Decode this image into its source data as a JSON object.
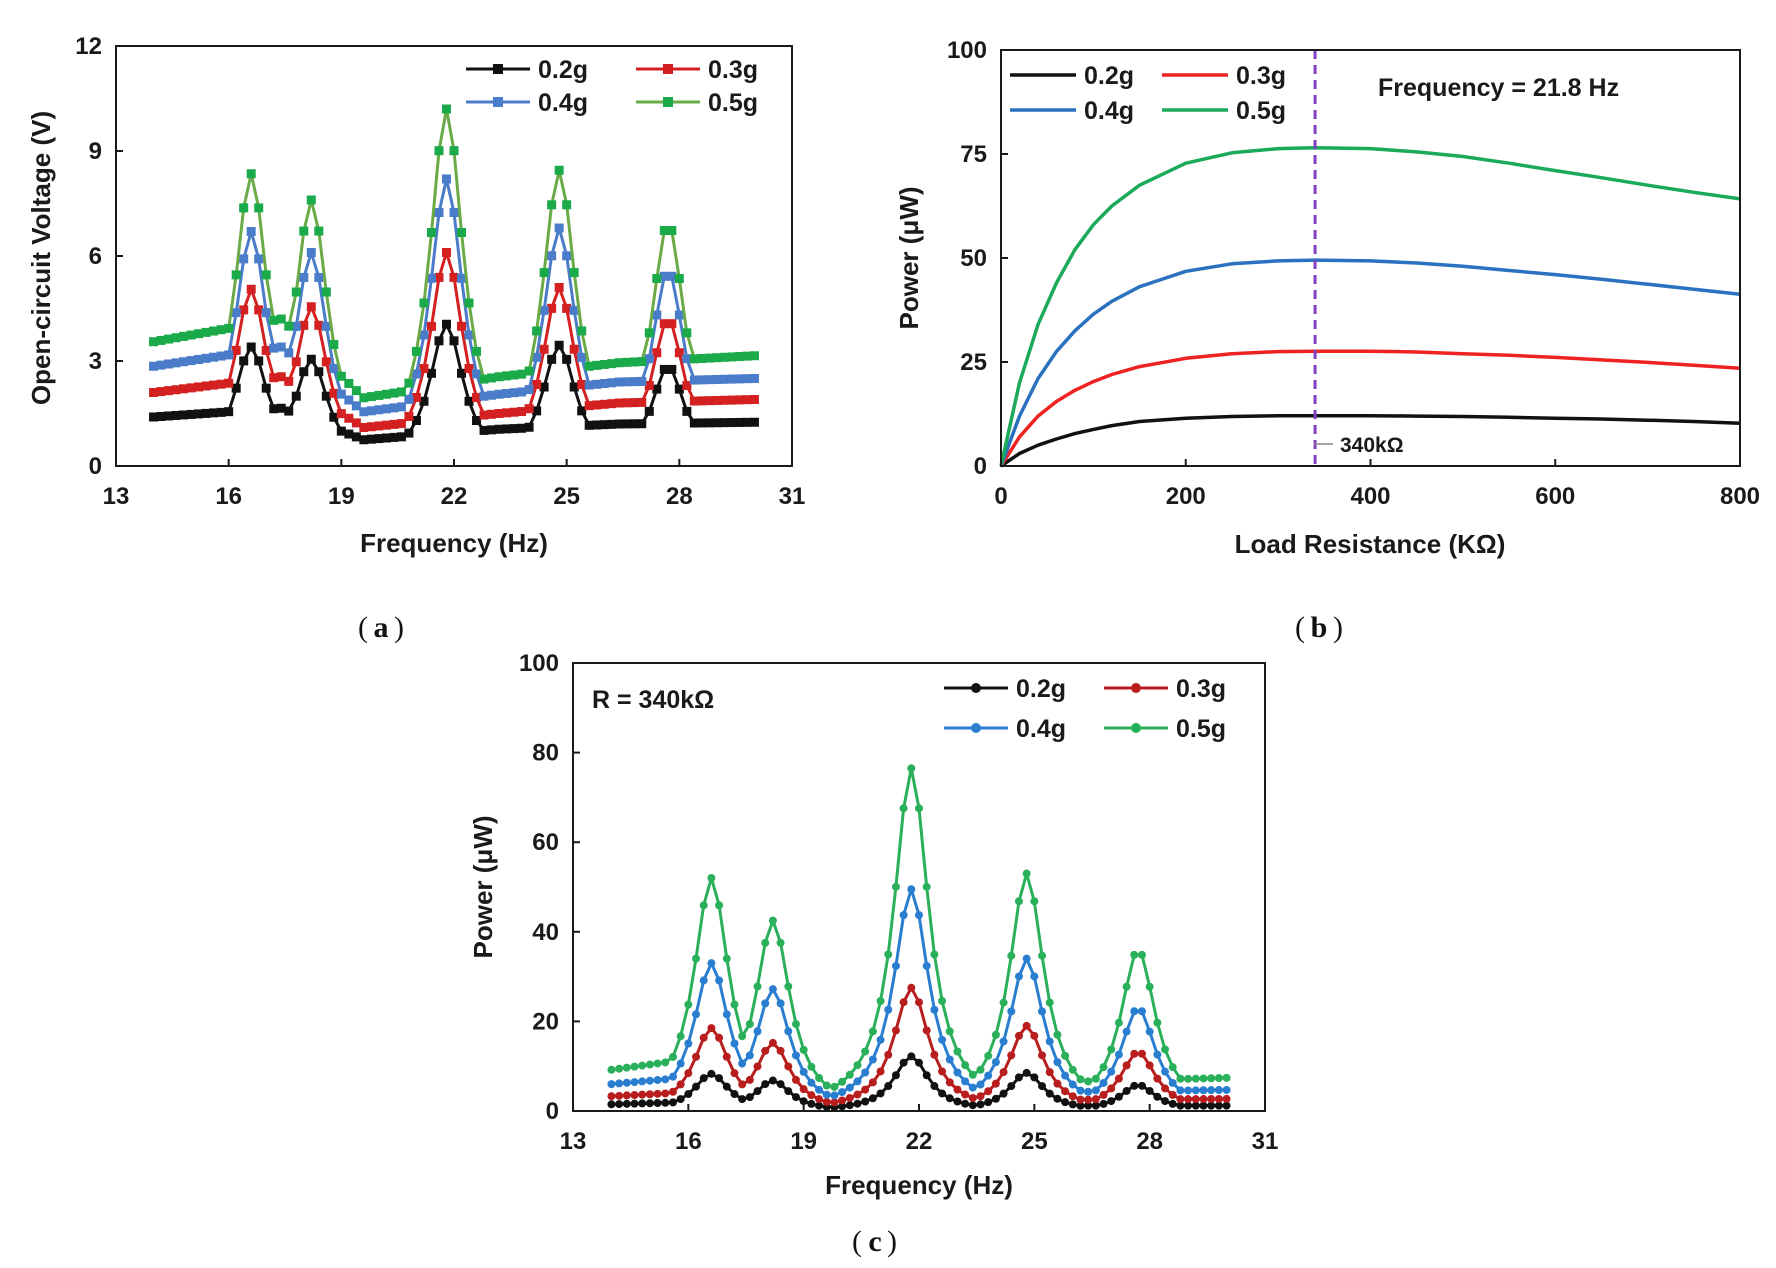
{
  "colors": {
    "a": {
      "0.2g": "#111111",
      "0.3g": "#d42020",
      "0.4g": "#4a7cc9",
      "0.5g": "#6aab48"
    },
    "b": {
      "0.2g": "#111111",
      "0.3g": "#ee2222",
      "0.4g": "#2a72c0",
      "0.5g": "#1aaa5a"
    },
    "c": {
      "0.2g": "#111111",
      "0.3g": "#b81e1e",
      "0.4g": "#2a7ed0",
      "0.5g": "#2ab05a"
    },
    "marker_a_0.5g": "#1aaa4a",
    "dashed_line": "#8040c0"
  },
  "chart_data": [
    {
      "id": "a",
      "type": "line",
      "caption": "a",
      "xlabel": "Frequency (Hz)",
      "ylabel": "Open-circuit Voltage (V)",
      "xlim": [
        13,
        31
      ],
      "ylim": [
        0,
        12
      ],
      "xticks": [
        "13",
        "16",
        "19",
        "22",
        "25",
        "28",
        "31"
      ],
      "yticks": [
        "0",
        "3",
        "6",
        "9",
        "12"
      ],
      "x_start": 14,
      "x_end": 30,
      "x_step": 0.2,
      "marker": "square",
      "legend": [
        "0.2g",
        "0.3g",
        "0.4g",
        "0.5g"
      ],
      "series": [
        {
          "name": "0.2g",
          "peaks": [
            [
              16.6,
              3.4
            ],
            [
              18.2,
              3.05
            ],
            [
              21.8,
              4.05
            ],
            [
              24.8,
              3.45
            ],
            [
              27.7,
              2.85
            ]
          ],
          "minima": [
            [
              14,
              1.4
            ],
            [
              17.4,
              1.65
            ],
            [
              19.6,
              0.75
            ],
            [
              23.2,
              1.05
            ],
            [
              26.4,
              1.2
            ],
            [
              30,
              1.25
            ]
          ]
        },
        {
          "name": "0.3g",
          "peaks": [
            [
              16.6,
              5.05
            ],
            [
              18.2,
              4.55
            ],
            [
              21.8,
              6.1
            ],
            [
              24.8,
              5.1
            ],
            [
              27.7,
              4.2
            ]
          ],
          "minima": [
            [
              14,
              2.1
            ],
            [
              17.4,
              2.55
            ],
            [
              19.6,
              1.1
            ],
            [
              23.2,
              1.5
            ],
            [
              26.4,
              1.8
            ],
            [
              30,
              1.9
            ]
          ]
        },
        {
          "name": "0.4g",
          "peaks": [
            [
              16.6,
              6.7
            ],
            [
              18.2,
              6.1
            ],
            [
              21.8,
              8.2
            ],
            [
              24.8,
              6.8
            ],
            [
              27.7,
              5.6
            ]
          ],
          "minima": [
            [
              14,
              2.85
            ],
            [
              17.4,
              3.4
            ],
            [
              19.6,
              1.55
            ],
            [
              23.2,
              2.05
            ],
            [
              26.4,
              2.4
            ],
            [
              30,
              2.5
            ]
          ]
        },
        {
          "name": "0.5g",
          "peaks": [
            [
              16.6,
              8.35
            ],
            [
              18.2,
              7.6
            ],
            [
              21.8,
              10.2
            ],
            [
              24.8,
              8.45
            ],
            [
              27.7,
              6.95
            ]
          ],
          "minima": [
            [
              14,
              3.55
            ],
            [
              17.4,
              4.2
            ],
            [
              19.6,
              1.95
            ],
            [
              23.2,
              2.55
            ],
            [
              26.4,
              2.95
            ],
            [
              30,
              3.15
            ]
          ]
        }
      ]
    },
    {
      "id": "b",
      "type": "line",
      "caption": "b",
      "xlabel": "Load Resistance  (KΩ)",
      "ylabel": "Power  (μW)",
      "xlim": [
        0,
        800
      ],
      "ylim": [
        0,
        100
      ],
      "xticks": [
        "0",
        "200",
        "400",
        "600",
        "800"
      ],
      "yticks": [
        "0",
        "25",
        "50",
        "75",
        "100"
      ],
      "annotation": "Frequency = 21.8 Hz",
      "marker_line": {
        "x": 340,
        "label": "340kΩ"
      },
      "legend": [
        "0.2g",
        "0.3g",
        "0.4g",
        "0.5g"
      ],
      "series": [
        {
          "name": "0.2g",
          "x": [
            0,
            20,
            40,
            60,
            80,
            100,
            120,
            150,
            200,
            250,
            300,
            340,
            400,
            450,
            500,
            550,
            600,
            650,
            700,
            750,
            800
          ],
          "y": [
            0,
            3,
            5,
            6.5,
            7.8,
            8.8,
            9.7,
            10.7,
            11.5,
            11.9,
            12.1,
            12.1,
            12.1,
            12.0,
            11.9,
            11.7,
            11.5,
            11.3,
            11.0,
            10.7,
            10.3
          ]
        },
        {
          "name": "0.3g",
          "x": [
            0,
            20,
            40,
            60,
            80,
            100,
            120,
            150,
            200,
            250,
            300,
            340,
            400,
            450,
            500,
            550,
            600,
            650,
            700,
            750,
            800
          ],
          "y": [
            0,
            7,
            12,
            15.5,
            18.2,
            20.3,
            22,
            23.9,
            25.9,
            27,
            27.5,
            27.6,
            27.6,
            27.4,
            27.0,
            26.6,
            26.1,
            25.5,
            24.9,
            24.2,
            23.5
          ]
        },
        {
          "name": "0.4g",
          "x": [
            0,
            20,
            40,
            60,
            80,
            100,
            120,
            150,
            200,
            250,
            300,
            340,
            400,
            450,
            500,
            550,
            600,
            650,
            700,
            750,
            800
          ],
          "y": [
            0,
            12,
            21,
            27.5,
            32.5,
            36.5,
            39.6,
            43.1,
            46.8,
            48.6,
            49.3,
            49.5,
            49.3,
            48.8,
            48.0,
            47.0,
            46.0,
            44.9,
            43.7,
            42.5,
            41.3
          ]
        },
        {
          "name": "0.5g",
          "x": [
            0,
            20,
            40,
            60,
            80,
            100,
            120,
            150,
            200,
            250,
            300,
            340,
            400,
            450,
            500,
            550,
            600,
            650,
            700,
            750,
            800
          ],
          "y": [
            0,
            20,
            34,
            44,
            52,
            58,
            62.5,
            67.5,
            72.8,
            75.3,
            76.3,
            76.5,
            76.3,
            75.5,
            74.4,
            72.8,
            71.0,
            69.3,
            67.5,
            65.8,
            64.2
          ]
        }
      ]
    },
    {
      "id": "c",
      "type": "line",
      "caption": "c",
      "xlabel": "Frequency (Hz)",
      "ylabel": "Power  (μW)",
      "xlim": [
        13,
        31
      ],
      "ylim": [
        0,
        100
      ],
      "xticks": [
        "13",
        "16",
        "19",
        "22",
        "25",
        "28",
        "31"
      ],
      "yticks": [
        "0",
        "20",
        "40",
        "60",
        "80",
        "100"
      ],
      "annotation": "R = 340kΩ",
      "x_start": 14,
      "x_end": 30,
      "x_step": 0.2,
      "marker": "circle",
      "legend": [
        "0.2g",
        "0.3g",
        "0.4g",
        "0.5g"
      ],
      "series": [
        {
          "name": "0.2g",
          "peaks": [
            [
              16.6,
              8.3
            ],
            [
              18.2,
              6.8
            ],
            [
              21.8,
              12.2
            ],
            [
              24.8,
              8.5
            ],
            [
              27.7,
              5.8
            ]
          ],
          "minima": [
            [
              14,
              1.5
            ],
            [
              17.4,
              2.3
            ],
            [
              19.6,
              0.4
            ],
            [
              23.2,
              0.8
            ],
            [
              26.4,
              1.2
            ],
            [
              30,
              1.2
            ]
          ]
        },
        {
          "name": "0.3g",
          "peaks": [
            [
              16.6,
              18.5
            ],
            [
              18.2,
              15.2
            ],
            [
              21.8,
              27.5
            ],
            [
              24.8,
              19
            ],
            [
              27.7,
              13.2
            ]
          ],
          "minima": [
            [
              14,
              3.3
            ],
            [
              17.4,
              4.8
            ],
            [
              19.6,
              0.9
            ],
            [
              23.2,
              1.6
            ],
            [
              26.4,
              2.5
            ],
            [
              30,
              2.7
            ]
          ]
        },
        {
          "name": "0.4g",
          "peaks": [
            [
              16.6,
              33
            ],
            [
              18.2,
              27.2
            ],
            [
              21.8,
              49.5
            ],
            [
              24.8,
              34
            ],
            [
              27.7,
              23
            ]
          ],
          "minima": [
            [
              14,
              6
            ],
            [
              17.4,
              8.6
            ],
            [
              19.6,
              1.6
            ],
            [
              23.2,
              3
            ],
            [
              26.4,
              4.3
            ],
            [
              30,
              4.7
            ]
          ]
        },
        {
          "name": "0.5g",
          "peaks": [
            [
              16.6,
              52
            ],
            [
              18.2,
              42.5
            ],
            [
              21.8,
              76.5
            ],
            [
              24.8,
              53
            ],
            [
              27.7,
              36
            ]
          ],
          "minima": [
            [
              14,
              9.2
            ],
            [
              17.4,
              13.2
            ],
            [
              19.6,
              2.6
            ],
            [
              23.2,
              4.8
            ],
            [
              26.4,
              6.6
            ],
            [
              30,
              7.4
            ]
          ]
        }
      ]
    }
  ]
}
